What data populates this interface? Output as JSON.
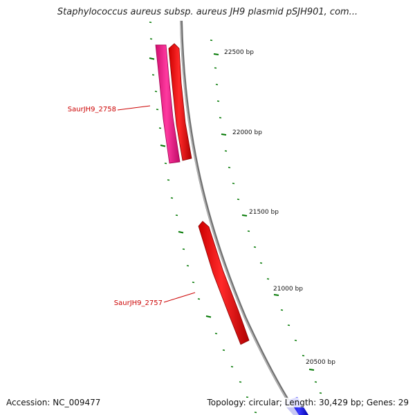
{
  "title": "Staphylococcus aureus subsp. aureus JH9 plasmid pSJH901, com...",
  "footer": {
    "accession_label": "Accession:",
    "accession": "NC_009477",
    "topology_label": "Topology:",
    "topology": "circular",
    "length_label": "Length:",
    "length": "30,429 bp",
    "genes_label": "Genes:",
    "genes": "29"
  },
  "scale_labels": [
    "22500 bp",
    "22000 bp",
    "21500 bp",
    "21000 bp",
    "20500 bp"
  ],
  "gene_labels": [
    "SaurJH9_2758",
    "SaurJH9_2757"
  ],
  "colors": {
    "forward_gene": "#ff0000",
    "reverse_gene": "#ff1493",
    "backbone": "#808080",
    "ticks": "#007700",
    "label_text": "#cc0000",
    "next_feature": "#0000ff"
  }
}
